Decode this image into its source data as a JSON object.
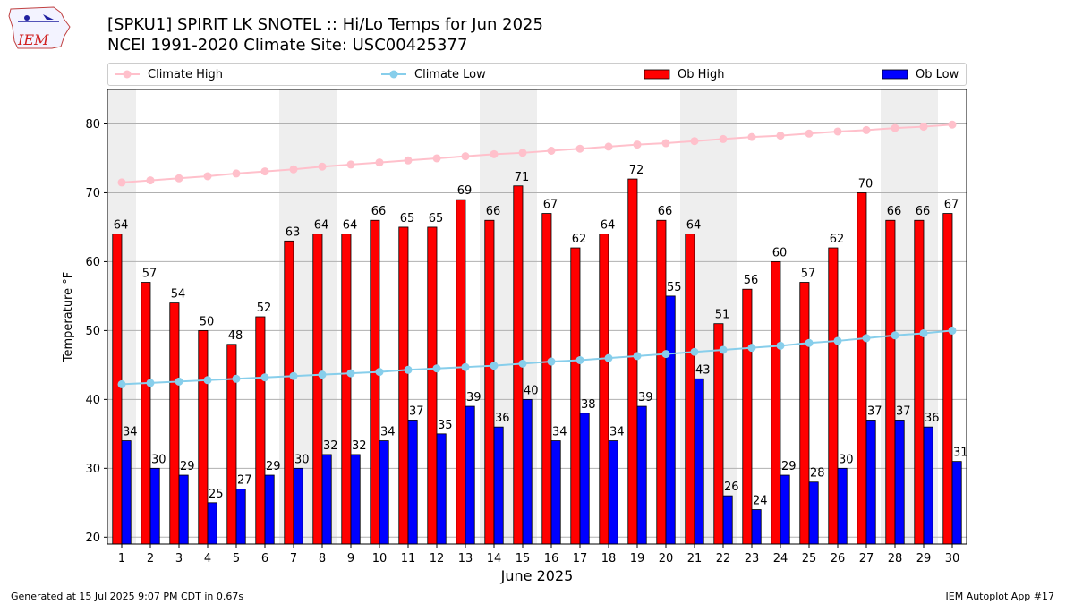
{
  "header": {
    "title_line1": "[SPKU1] SPIRIT LK SNOTEL :: Hi/Lo Temps for Jun 2025",
    "title_line2": "NCEI 1991-2020 Climate Site: USC00425377",
    "logo_text": "IEM"
  },
  "legend": {
    "climate_high": "Climate High",
    "climate_low": "Climate Low",
    "ob_high": "Ob High",
    "ob_low": "Ob Low"
  },
  "footer": {
    "generated": "Generated at 15 Jul 2025 9:07 PM CDT in 0.67s",
    "app": "IEM Autoplot App #17"
  },
  "colors": {
    "ob_high": "#ff0000",
    "ob_low": "#0000ff",
    "climate_high": "#ffc0cb",
    "climate_low": "#87ceeb",
    "weekend_shade": "#eeeeee",
    "grid": "#b0b0b0"
  },
  "chart_data": {
    "type": "bar",
    "xlabel": "June 2025",
    "ylabel": "Temperature °F",
    "ylim": [
      19,
      85
    ],
    "yticks": [
      20,
      30,
      40,
      50,
      60,
      70,
      80
    ],
    "grid": "horizontal",
    "legend_placement": "top",
    "categories": [
      "1",
      "2",
      "3",
      "4",
      "5",
      "6",
      "7",
      "8",
      "9",
      "10",
      "11",
      "12",
      "13",
      "14",
      "15",
      "16",
      "17",
      "18",
      "19",
      "20",
      "21",
      "22",
      "23",
      "24",
      "25",
      "26",
      "27",
      "28",
      "29",
      "30"
    ],
    "shaded_days": [
      1,
      7,
      8,
      14,
      15,
      21,
      22,
      28,
      29
    ],
    "series": [
      {
        "name": "Ob High",
        "type": "bar",
        "values": [
          64,
          57,
          54,
          50,
          48,
          52,
          63,
          64,
          64,
          66,
          65,
          65,
          69,
          66,
          71,
          67,
          62,
          64,
          72,
          66,
          64,
          51,
          56,
          60,
          57,
          62,
          70,
          66,
          66,
          67
        ],
        "labels": [
          "64",
          "57",
          "54",
          "50",
          "48",
          "52",
          "63",
          "64",
          "64",
          "66",
          "65",
          "65",
          "69",
          "66",
          "71",
          "67",
          "62",
          "64",
          "72",
          "66",
          "64",
          "51",
          "56",
          "60",
          "57",
          "62",
          "70",
          "66",
          "66",
          "67"
        ]
      },
      {
        "name": "Ob Low",
        "type": "bar",
        "values": [
          34,
          30,
          29,
          25,
          27,
          29,
          30,
          32,
          32,
          34,
          37,
          35,
          39,
          36,
          40,
          34,
          38,
          34,
          39,
          55,
          43,
          26,
          24,
          29,
          28,
          30,
          37,
          37,
          36,
          31
        ],
        "labels": [
          "34",
          "30",
          "29",
          "25",
          "27",
          "29",
          "30",
          "32",
          "32",
          "34",
          "37",
          "35",
          "39",
          "36",
          "40",
          "34",
          "38",
          "34",
          "39",
          "55",
          "43",
          "26",
          "24",
          "29",
          "28",
          "30",
          "37",
          "37",
          "36",
          "31"
        ]
      },
      {
        "name": "Climate High",
        "type": "line",
        "values": [
          71.5,
          71.8,
          72.1,
          72.4,
          72.8,
          73.1,
          73.4,
          73.8,
          74.1,
          74.4,
          74.7,
          75.0,
          75.3,
          75.6,
          75.8,
          76.1,
          76.4,
          76.7,
          77.0,
          77.2,
          77.5,
          77.8,
          78.1,
          78.3,
          78.6,
          78.9,
          79.1,
          79.4,
          79.6,
          79.9
        ]
      },
      {
        "name": "Climate Low",
        "type": "line",
        "values": [
          42.2,
          42.4,
          42.6,
          42.8,
          43.0,
          43.2,
          43.4,
          43.6,
          43.8,
          44.0,
          44.3,
          44.5,
          44.7,
          44.9,
          45.2,
          45.5,
          45.7,
          46.0,
          46.3,
          46.6,
          46.9,
          47.2,
          47.5,
          47.8,
          48.2,
          48.5,
          48.9,
          49.3,
          49.6,
          50.0
        ]
      }
    ]
  }
}
